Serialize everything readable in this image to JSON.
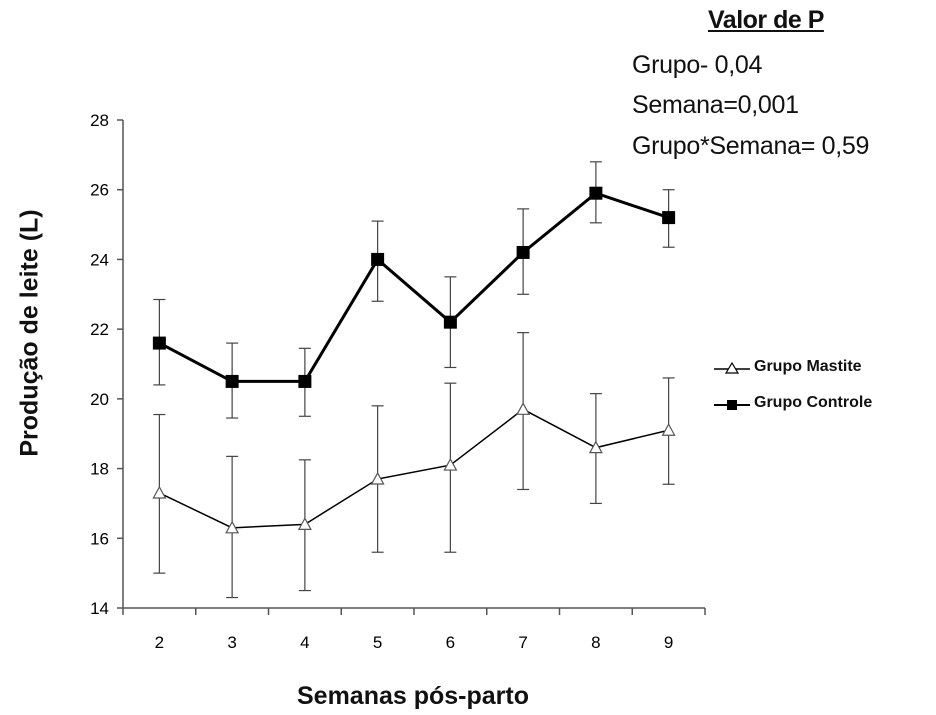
{
  "p_values": {
    "title": "Valor de P",
    "lines": [
      "Grupo-  0,04",
      "Semana=0,001",
      "Grupo*Semana=  0,59"
    ]
  },
  "chart_data": {
    "type": "line",
    "title": "",
    "xlabel": "Semanas pós-parto",
    "ylabel": "Produção de leite (L)",
    "categories": [
      "2",
      "3",
      "4",
      "5",
      "6",
      "7",
      "8",
      "9"
    ],
    "ylim": [
      14,
      28
    ],
    "yticks": [
      14,
      16,
      18,
      20,
      22,
      24,
      26,
      28
    ],
    "grid": false,
    "legend_placement": "right",
    "series": [
      {
        "name": "Grupo Mastite",
        "marker": "open-triangle",
        "color": "#000000",
        "values": [
          17.3,
          16.3,
          16.4,
          17.7,
          18.1,
          19.7,
          18.6,
          19.1
        ],
        "error_upper": [
          19.55,
          18.35,
          18.25,
          19.8,
          20.45,
          21.9,
          20.15,
          20.6
        ],
        "error_lower": [
          15.0,
          14.3,
          14.5,
          15.6,
          15.6,
          17.4,
          17.0,
          17.55
        ]
      },
      {
        "name": "Grupo Controle",
        "marker": "filled-square",
        "color": "#000000",
        "values": [
          21.6,
          20.5,
          20.5,
          24.0,
          22.2,
          24.2,
          25.9,
          25.2
        ],
        "error_upper": [
          22.85,
          21.6,
          21.45,
          25.1,
          23.5,
          25.45,
          26.8,
          26.0
        ],
        "error_lower": [
          20.4,
          19.45,
          19.5,
          22.8,
          20.9,
          23.0,
          25.05,
          24.35
        ]
      }
    ]
  }
}
